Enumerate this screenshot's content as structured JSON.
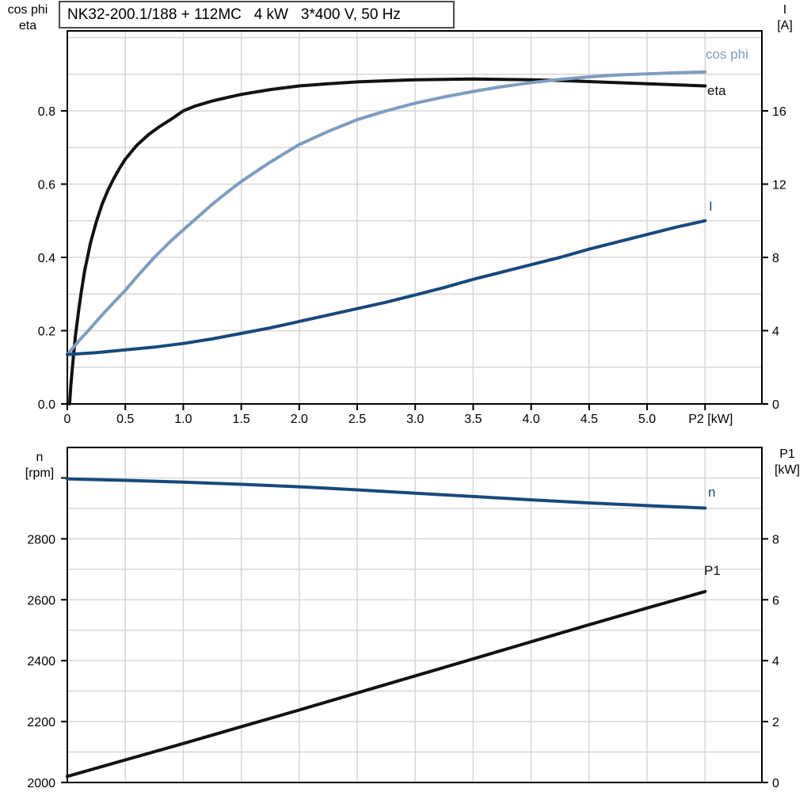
{
  "title": "NK32-200.1/188 + 112MC   4 kW   3*400 V, 50 Hz",
  "colors": {
    "eta_curve": "#121212",
    "cos_phi_curve": "#7D9CC0",
    "current_curve": "#17497B",
    "speed_curve": "#17497B",
    "p1_curve": "#121212",
    "grid": "#D7D7D7",
    "axis": "#000000",
    "background": "#FFFFFF"
  },
  "chart_data": [
    {
      "type": "line",
      "title": "Motor efficiency, power factor and current vs shaft power",
      "xlabel": "P2 [kW]",
      "xlabel_at": 5.5,
      "x_ticks": {
        "values": [
          0,
          0.5,
          1.0,
          1.5,
          2.0,
          2.5,
          3.0,
          3.5,
          4.0,
          4.5,
          5.0,
          5.5
        ],
        "labels": [
          "0",
          "0.5",
          "1.0",
          "1.5",
          "2.0",
          "2.5",
          "3.0",
          "3.5",
          "4.0",
          "4.5",
          "5.0",
          ""
        ]
      },
      "x_range": [
        0,
        5.99
      ],
      "grid": {
        "x_step": 0.5,
        "y_step": 0.1
      },
      "left_axis": {
        "label": [
          "cos phi",
          "eta"
        ],
        "range": [
          0,
          1.0183
        ],
        "ticks": {
          "values": [
            0.0,
            0.2,
            0.4,
            0.6,
            0.8
          ],
          "labels": [
            "0.0",
            "0.2",
            "0.4",
            "0.6",
            "0.8"
          ]
        }
      },
      "right_axis": {
        "label": [
          "I",
          "[A]"
        ],
        "range": [
          0,
          20.37
        ],
        "left_equiv_offset": 0,
        "left_equiv_factor": 0.05,
        "ticks": {
          "values": [
            0,
            4,
            8,
            12,
            16
          ],
          "labels": [
            "0",
            "4",
            "8",
            "12",
            "16"
          ]
        }
      },
      "series": [
        {
          "name": "eta",
          "axis": "left",
          "color": "#121212",
          "points": [
            [
              0.02,
              0
            ],
            [
              0.03,
              0.05
            ],
            [
              0.05,
              0.12
            ],
            [
              0.07,
              0.185
            ],
            [
              0.1,
              0.26
            ],
            [
              0.12,
              0.305
            ],
            [
              0.15,
              0.365
            ],
            [
              0.18,
              0.41
            ],
            [
              0.2,
              0.44
            ],
            [
              0.25,
              0.497
            ],
            [
              0.3,
              0.545
            ],
            [
              0.35,
              0.583
            ],
            [
              0.4,
              0.615
            ],
            [
              0.45,
              0.643
            ],
            [
              0.5,
              0.668
            ],
            [
              0.6,
              0.706
            ],
            [
              0.7,
              0.735
            ],
            [
              0.8,
              0.758
            ],
            [
              0.9,
              0.778
            ],
            [
              1.0,
              0.8
            ],
            [
              1.1,
              0.813
            ],
            [
              1.25,
              0.827
            ],
            [
              1.4,
              0.838
            ],
            [
              1.5,
              0.845
            ],
            [
              1.75,
              0.858
            ],
            [
              2.0,
              0.868
            ],
            [
              2.25,
              0.874
            ],
            [
              2.5,
              0.879
            ],
            [
              2.75,
              0.882
            ],
            [
              3.0,
              0.885
            ],
            [
              3.25,
              0.886
            ],
            [
              3.5,
              0.887
            ],
            [
              3.75,
              0.886
            ],
            [
              4.0,
              0.885
            ],
            [
              4.25,
              0.883
            ],
            [
              4.5,
              0.88
            ],
            [
              4.75,
              0.877
            ],
            [
              5.0,
              0.874
            ],
            [
              5.25,
              0.871
            ],
            [
              5.5,
              0.868
            ]
          ]
        },
        {
          "name": "cos phi",
          "axis": "left",
          "color": "#7D9CC0",
          "points": [
            [
              0,
              0.135
            ],
            [
              0.1,
              0.172
            ],
            [
              0.2,
              0.207
            ],
            [
              0.3,
              0.243
            ],
            [
              0.4,
              0.277
            ],
            [
              0.5,
              0.31
            ],
            [
              0.6,
              0.347
            ],
            [
              0.75,
              0.4
            ],
            [
              0.9,
              0.447
            ],
            [
              1.0,
              0.475
            ],
            [
              1.1,
              0.503
            ],
            [
              1.25,
              0.545
            ],
            [
              1.4,
              0.583
            ],
            [
              1.5,
              0.607
            ],
            [
              1.75,
              0.66
            ],
            [
              2.0,
              0.708
            ],
            [
              2.25,
              0.744
            ],
            [
              2.5,
              0.776
            ],
            [
              2.75,
              0.8
            ],
            [
              3.0,
              0.821
            ],
            [
              3.25,
              0.838
            ],
            [
              3.5,
              0.853
            ],
            [
              3.75,
              0.866
            ],
            [
              4.0,
              0.877
            ],
            [
              4.25,
              0.886
            ],
            [
              4.5,
              0.893
            ],
            [
              4.75,
              0.898
            ],
            [
              5.0,
              0.901
            ],
            [
              5.25,
              0.904
            ],
            [
              5.5,
              0.906
            ]
          ]
        },
        {
          "name": "I",
          "axis": "right",
          "color": "#17497B",
          "points": [
            [
              0,
              2.7
            ],
            [
              0.25,
              2.8
            ],
            [
              0.5,
              2.95
            ],
            [
              0.75,
              3.1
            ],
            [
              1.0,
              3.3
            ],
            [
              1.25,
              3.55
            ],
            [
              1.5,
              3.85
            ],
            [
              1.75,
              4.15
            ],
            [
              2.0,
              4.5
            ],
            [
              2.25,
              4.85
            ],
            [
              2.5,
              5.2
            ],
            [
              2.75,
              5.55
            ],
            [
              3.0,
              5.95
            ],
            [
              3.25,
              6.35
            ],
            [
              3.5,
              6.8
            ],
            [
              3.75,
              7.2
            ],
            [
              4.0,
              7.6
            ],
            [
              4.25,
              8.0
            ],
            [
              4.5,
              8.45
            ],
            [
              4.75,
              8.85
            ],
            [
              5.0,
              9.25
            ],
            [
              5.25,
              9.65
            ],
            [
              5.5,
              10.0
            ]
          ]
        }
      ]
    },
    {
      "type": "line",
      "title": "Motor speed and input power vs shaft power",
      "xlabel": "",
      "x_ticks": {
        "values": [],
        "labels": []
      },
      "x_range": [
        0,
        5.99
      ],
      "grid": {
        "x_step": 0.5,
        "y_step": 100
      },
      "left_axis": {
        "label": [
          "n",
          "[rpm]"
        ],
        "range": [
          2000,
          3100
        ],
        "ticks": {
          "values": [
            2000,
            2200,
            2400,
            2600,
            2800,
            3000
          ],
          "labels": [
            "2000",
            "2200",
            "2400",
            "2600",
            "2800",
            ""
          ]
        }
      },
      "right_axis": {
        "label": [
          "P1",
          "[kW]"
        ],
        "range": [
          0,
          11
        ],
        "left_equiv_offset": 2000,
        "left_equiv_factor": 100,
        "ticks": {
          "values": [
            0,
            2,
            4,
            6,
            8
          ],
          "labels": [
            "0",
            "2",
            "4",
            "6",
            "8"
          ]
        }
      },
      "series": [
        {
          "name": "n",
          "axis": "left",
          "color": "#17497B",
          "points": [
            [
              0,
              2997
            ],
            [
              0.5,
              2992
            ],
            [
              1.0,
              2986
            ],
            [
              1.5,
              2979
            ],
            [
              2.0,
              2971
            ],
            [
              2.5,
              2961
            ],
            [
              3.0,
              2950
            ],
            [
              3.5,
              2939
            ],
            [
              4.0,
              2928
            ],
            [
              4.5,
              2918
            ],
            [
              5.0,
              2909
            ],
            [
              5.5,
              2901
            ]
          ]
        },
        {
          "name": "P1",
          "axis": "right",
          "color": "#121212",
          "points": [
            [
              0,
              0.2
            ],
            [
              0.5,
              0.74
            ],
            [
              1.0,
              1.28
            ],
            [
              1.5,
              1.83
            ],
            [
              2.0,
              2.38
            ],
            [
              2.5,
              2.94
            ],
            [
              3.0,
              3.5
            ],
            [
              3.5,
              4.06
            ],
            [
              4.0,
              4.62
            ],
            [
              4.5,
              5.18
            ],
            [
              5.0,
              5.73
            ],
            [
              5.5,
              6.27
            ]
          ]
        }
      ]
    }
  ]
}
